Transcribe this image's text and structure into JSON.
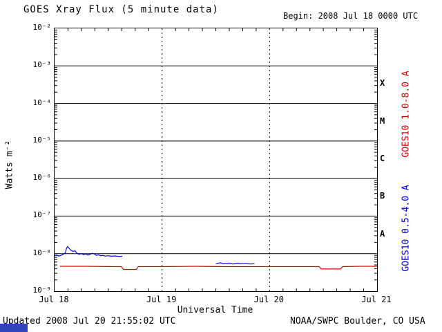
{
  "header": {
    "begin": "Begin:  2008 Jul 18 0000 UTC"
  },
  "footer": {
    "updated": "Updated 2008 Jul 20 21:55:02 UTC",
    "credit": "NOAA/SWPC Boulder, CO USA",
    "logo_color": "#3344bb"
  },
  "chart_data": {
    "type": "line",
    "title": "GOES Xray Flux (5 minute data)",
    "xlabel": "Universal Time",
    "ylabel": "Watts m⁻²",
    "x_unit": "days since 2008 Jul 18 0000 UTC",
    "xlim": [
      0,
      3
    ],
    "ylim": [
      1e-09,
      0.01
    ],
    "ylog": true,
    "grid": "horizontal decades solid, day boundaries dotted",
    "x_ticks": [
      {
        "t": 0,
        "label": "Jul 18"
      },
      {
        "t": 1,
        "label": "Jul 19"
      },
      {
        "t": 2,
        "label": "Jul 20"
      },
      {
        "t": 3,
        "label": "Jul 21"
      }
    ],
    "day_gridlines": [
      1,
      2
    ],
    "y_exponents": [
      -2,
      -3,
      -4,
      -5,
      -6,
      -7,
      -8,
      -9
    ],
    "flare_classes": [
      {
        "label": "X",
        "log_center": -3.5
      },
      {
        "label": "M",
        "log_center": -4.5
      },
      {
        "label": "C",
        "log_center": -5.5
      },
      {
        "label": "B",
        "log_center": -6.5
      },
      {
        "label": "A",
        "log_center": -7.5
      }
    ],
    "series": [
      {
        "name": "GOES10 1.0-8.0 A",
        "color": "#dd0000",
        "segments": [
          [
            [
              0.05,
              4.6e-09
            ],
            [
              0.3,
              4.6e-09
            ],
            [
              0.55,
              4.5e-09
            ],
            [
              0.62,
              4.5e-09
            ],
            [
              0.64,
              3.8e-09
            ],
            [
              0.76,
              3.8e-09
            ],
            [
              0.78,
              4.5e-09
            ],
            [
              1.0,
              4.5e-09
            ],
            [
              1.3,
              4.6e-09
            ],
            [
              1.6,
              4.5e-09
            ],
            [
              1.9,
              4.5e-09
            ],
            [
              2.2,
              4.5e-09
            ],
            [
              2.46,
              4.5e-09
            ],
            [
              2.48,
              3.9e-09
            ],
            [
              2.66,
              3.9e-09
            ],
            [
              2.68,
              4.5e-09
            ],
            [
              2.85,
              4.6e-09
            ],
            [
              3.0,
              4.6e-09
            ]
          ]
        ]
      },
      {
        "name": "GOES10 0.5-4.0 A",
        "color": "#0000dd",
        "segments": [
          [
            [
              0.0,
              8.8e-09
            ],
            [
              0.02,
              9.2e-09
            ],
            [
              0.04,
              8.6e-09
            ],
            [
              0.06,
              9e-09
            ],
            [
              0.08,
              9.6e-09
            ],
            [
              0.1,
              1.05e-08
            ],
            [
              0.11,
              1.35e-08
            ],
            [
              0.12,
              1.55e-08
            ],
            [
              0.13,
              1.45e-08
            ],
            [
              0.15,
              1.25e-08
            ],
            [
              0.17,
              1.15e-08
            ],
            [
              0.19,
              1.18e-08
            ],
            [
              0.21,
              1.02e-08
            ],
            [
              0.23,
              9.6e-09
            ],
            [
              0.25,
              1e-08
            ],
            [
              0.27,
              9.4e-09
            ],
            [
              0.29,
              9.8e-09
            ],
            [
              0.31,
              9.2e-09
            ],
            [
              0.33,
              9.6e-09
            ],
            [
              0.35,
              1.02e-08
            ],
            [
              0.37,
              9.8e-09
            ],
            [
              0.39,
              9e-09
            ],
            [
              0.41,
              9.3e-09
            ],
            [
              0.43,
              8.8e-09
            ],
            [
              0.45,
              9e-09
            ],
            [
              0.47,
              8.6e-09
            ],
            [
              0.5,
              8.8e-09
            ],
            [
              0.53,
              8.5e-09
            ],
            [
              0.56,
              8.7e-09
            ],
            [
              0.6,
              8.4e-09
            ],
            [
              0.63,
              8.5e-09
            ]
          ],
          [
            [
              1.5,
              5.4e-09
            ],
            [
              1.54,
              5.7e-09
            ],
            [
              1.58,
              5.4e-09
            ],
            [
              1.62,
              5.6e-09
            ],
            [
              1.66,
              5.3e-09
            ],
            [
              1.7,
              5.6e-09
            ],
            [
              1.74,
              5.4e-09
            ],
            [
              1.78,
              5.5e-09
            ],
            [
              1.82,
              5.3e-09
            ],
            [
              1.86,
              5.4e-09
            ]
          ]
        ]
      }
    ]
  }
}
